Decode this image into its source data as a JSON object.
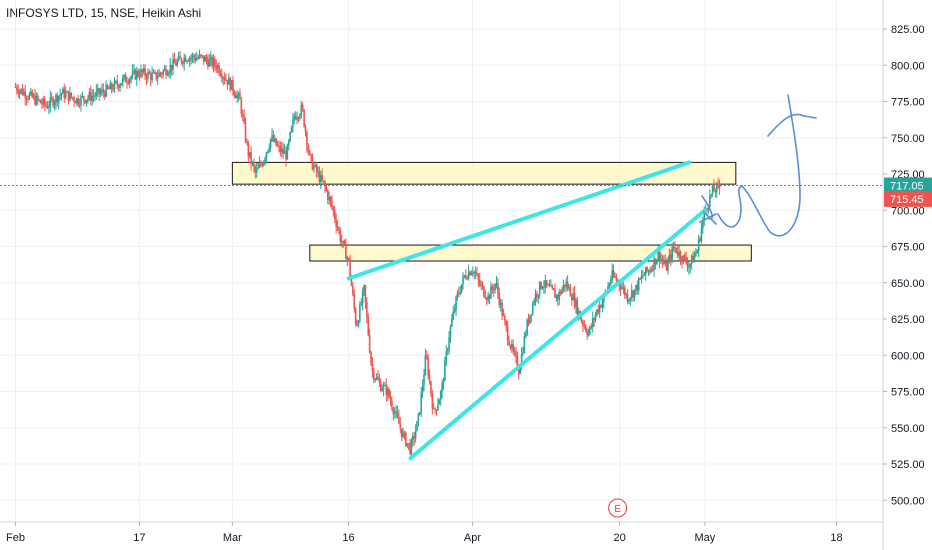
{
  "chart_title": "INFOSYS LTD, 15, NSE, Heikin Ashi",
  "chart_data": {
    "type": "candlestick",
    "symbol": "INFOSYS LTD",
    "interval": "15",
    "exchange": "NSE",
    "style": "Heikin Ashi",
    "ylim": [
      485,
      845
    ],
    "y_ticks": [
      "825.00",
      "800.00",
      "775.00",
      "750.00",
      "725.00",
      "700.00",
      "675.00",
      "650.00",
      "625.00",
      "600.00",
      "575.00",
      "550.00",
      "525.00",
      "500.00"
    ],
    "y_tick_values": [
      825,
      800,
      775,
      750,
      725,
      700,
      675,
      650,
      625,
      600,
      575,
      550,
      525,
      500
    ],
    "x_ticks": [
      {
        "label": "Feb",
        "day": 0
      },
      {
        "label": "17",
        "day": 16
      },
      {
        "label": "Mar",
        "day": 28
      },
      {
        "label": "16",
        "day": 43
      },
      {
        "label": "Apr",
        "day": 59
      },
      {
        "label": "20",
        "day": 78
      },
      {
        "label": "May",
        "day": 89
      },
      {
        "label": "18",
        "day": 106
      }
    ],
    "x_range_days": [
      -2,
      112
    ],
    "approx_close_path": [
      [
        0,
        785
      ],
      [
        2,
        778
      ],
      [
        4,
        772
      ],
      [
        6,
        781
      ],
      [
        8,
        776
      ],
      [
        10,
        779
      ],
      [
        12,
        783
      ],
      [
        14,
        790
      ],
      [
        16,
        795
      ],
      [
        18,
        792
      ],
      [
        20,
        799
      ],
      [
        22,
        806
      ],
      [
        24,
        805
      ],
      [
        26,
        800
      ],
      [
        27,
        792
      ],
      [
        28,
        785
      ],
      [
        29,
        775
      ],
      [
        30,
        740
      ],
      [
        31,
        725
      ],
      [
        32,
        735
      ],
      [
        33,
        750
      ],
      [
        34,
        742
      ],
      [
        35,
        738
      ],
      [
        36,
        765
      ],
      [
        37,
        770
      ],
      [
        38,
        735
      ],
      [
        39,
        725
      ],
      [
        40,
        715
      ],
      [
        41,
        700
      ],
      [
        42,
        680
      ],
      [
        43,
        665
      ],
      [
        44,
        620
      ],
      [
        45,
        645
      ],
      [
        46,
        590
      ],
      [
        47,
        580
      ],
      [
        48,
        575
      ],
      [
        49,
        560
      ],
      [
        50,
        545
      ],
      [
        51,
        535
      ],
      [
        52,
        555
      ],
      [
        53,
        600
      ],
      [
        54,
        560
      ],
      [
        55,
        575
      ],
      [
        56,
        615
      ],
      [
        57,
        640
      ],
      [
        58,
        655
      ],
      [
        59,
        660
      ],
      [
        60,
        648
      ],
      [
        61,
        640
      ],
      [
        62,
        650
      ],
      [
        63,
        625
      ],
      [
        64,
        605
      ],
      [
        65,
        590
      ],
      [
        66,
        620
      ],
      [
        67,
        640
      ],
      [
        68,
        650
      ],
      [
        69,
        645
      ],
      [
        70,
        640
      ],
      [
        71,
        650
      ],
      [
        72,
        640
      ],
      [
        73,
        625
      ],
      [
        74,
        615
      ],
      [
        75,
        630
      ],
      [
        76,
        640
      ],
      [
        77,
        655
      ],
      [
        78,
        650
      ],
      [
        79,
        640
      ],
      [
        80,
        645
      ],
      [
        81,
        655
      ],
      [
        82,
        660
      ],
      [
        83,
        670
      ],
      [
        84,
        660
      ],
      [
        85,
        675
      ],
      [
        86,
        668
      ],
      [
        87,
        662
      ],
      [
        88,
        672
      ],
      [
        89,
        700
      ],
      [
        90,
        713
      ],
      [
        91,
        716
      ]
    ],
    "price_labels": [
      {
        "value": 717.05,
        "text": "717.05",
        "color": "#26a69a"
      },
      {
        "value": 715.45,
        "text": "715.45",
        "color": "#ef5350"
      }
    ],
    "zones": [
      {
        "from_day": 28,
        "to_day": 93,
        "low": 718,
        "high": 733,
        "color": "#fff9c4"
      },
      {
        "from_day": 38,
        "to_day": 95,
        "low": 665,
        "high": 676,
        "color": "#fff9c4"
      }
    ],
    "trendlines": [
      {
        "from": [
          43,
          653
        ],
        "to": [
          87,
          733
        ],
        "color": "#3de5e5"
      },
      {
        "from": [
          51,
          529
        ],
        "to": [
          89,
          700
        ],
        "color": "#3de5e5"
      }
    ],
    "earnings_marker": "E",
    "colors": {
      "up": "#26a69a",
      "down": "#ef5350"
    }
  }
}
